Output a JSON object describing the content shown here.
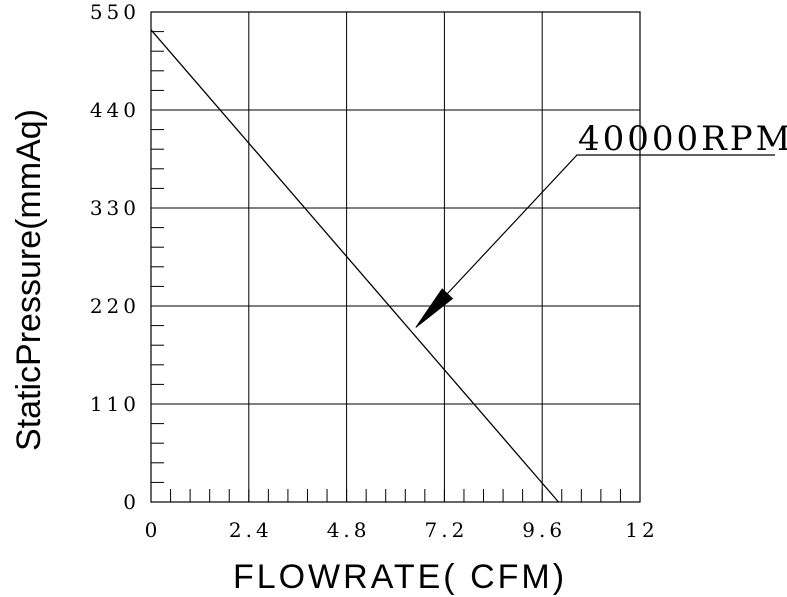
{
  "chart_data": {
    "type": "line",
    "xlabel": "FLOWRATE( CFM)",
    "ylabel": "StaticPressure(mmAq)",
    "xlim": [
      0,
      12
    ],
    "ylim": [
      0,
      550
    ],
    "x_ticks": [
      "0",
      "2.4",
      "4.8",
      "7.2",
      "9.6",
      "12"
    ],
    "y_ticks": [
      "0",
      "110",
      "220",
      "330",
      "440",
      "550"
    ],
    "x_tick_values": [
      0,
      2.4,
      4.8,
      7.2,
      9.6,
      12
    ],
    "y_tick_values": [
      0,
      110,
      220,
      330,
      440,
      550
    ],
    "x_minor_step": 0.48,
    "y_minor_step": 22,
    "grid": true,
    "series": [
      {
        "name": "40000RPM",
        "x": [
          0,
          10.0
        ],
        "y": [
          530,
          0
        ]
      }
    ],
    "annotations": [
      {
        "text": "40000RPM",
        "target_x": 6.5,
        "target_y": 196
      }
    ]
  }
}
